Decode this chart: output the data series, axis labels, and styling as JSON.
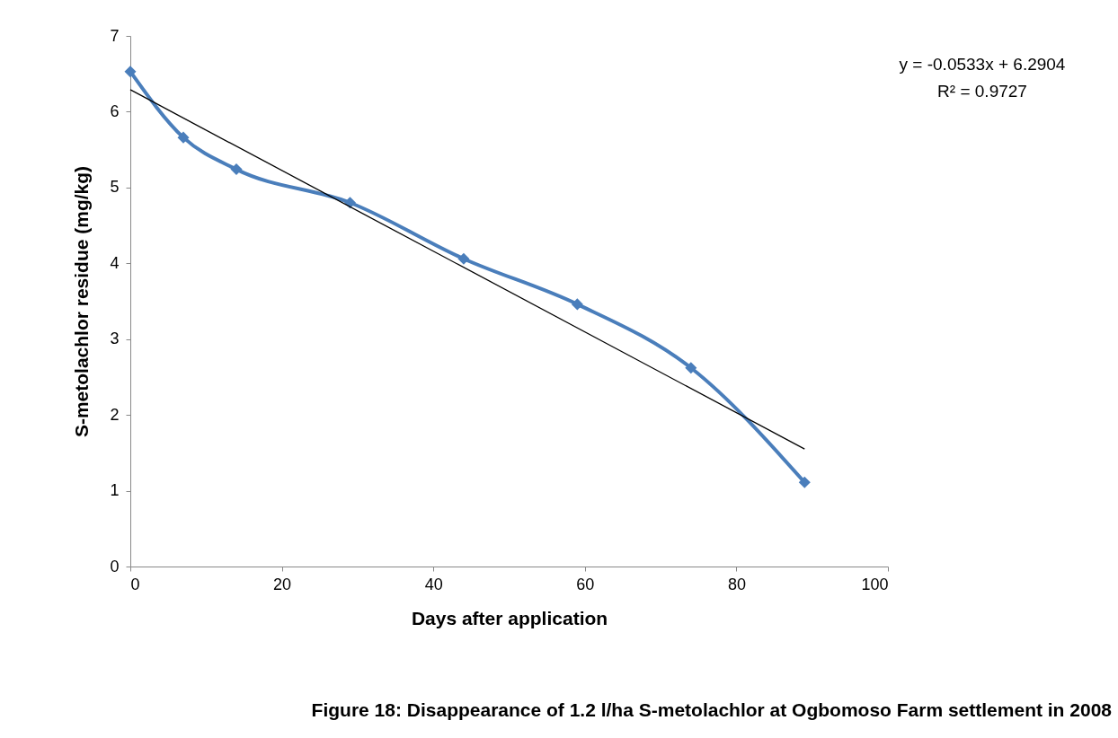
{
  "chart_data": {
    "type": "line",
    "xlabel": "Days after application",
    "ylabel": "S-metolachlor residue (mg/kg)",
    "xlim": [
      0,
      100
    ],
    "xticks": [
      0,
      20,
      40,
      60,
      80,
      100
    ],
    "ylim": [
      0,
      7
    ],
    "yticks": [
      0,
      1,
      2,
      3,
      4,
      5,
      6,
      7
    ],
    "grid": false,
    "series": [
      {
        "color": "#4a7ebb",
        "marker": "diamond",
        "line_style": "solid",
        "x": [
          0,
          7,
          14,
          29,
          44,
          59,
          74,
          89
        ],
        "values": [
          6.53,
          5.66,
          5.24,
          4.8,
          4.06,
          3.46,
          2.62,
          1.11
        ]
      },
      {
        "color": "#000000",
        "marker": "none",
        "line_style": "solid",
        "x": [
          0,
          89
        ],
        "values": [
          6.29,
          1.55
        ]
      }
    ],
    "annotations": [
      "y = -0.0533x + 6.2904",
      "R² = 0.9727",
      "Figure 18: Disappearance of 1.2 l/ha S-metolachlor at Ogbomoso Farm settlement in 2008"
    ]
  }
}
